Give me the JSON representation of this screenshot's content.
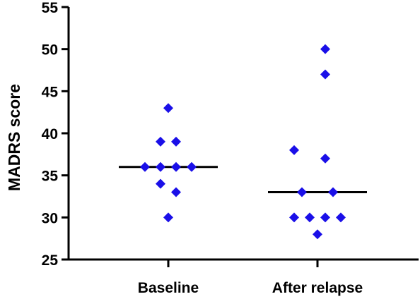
{
  "chart_data": {
    "type": "scatter",
    "title": "",
    "xlabel": "",
    "ylabel": "MADRS score",
    "ylim": [
      25,
      55
    ],
    "yticks": [
      "25",
      "30",
      "35",
      "40",
      "45",
      "50",
      "55"
    ],
    "categories": [
      "Baseline",
      "After relapse"
    ],
    "grid": false,
    "marker": "diamond",
    "colors": {
      "points": "#1a0fe8",
      "axes": "#000000",
      "median": "#000000"
    },
    "series": [
      {
        "category": "Baseline",
        "median": 36,
        "points": [
          {
            "offset": 0,
            "value": 43
          },
          {
            "offset": -0.5,
            "value": 39
          },
          {
            "offset": 0.5,
            "value": 39
          },
          {
            "offset": -1.5,
            "value": 36
          },
          {
            "offset": -0.5,
            "value": 36
          },
          {
            "offset": 0.5,
            "value": 36
          },
          {
            "offset": 1.5,
            "value": 36
          },
          {
            "offset": -0.5,
            "value": 34
          },
          {
            "offset": 0.5,
            "value": 33
          },
          {
            "offset": 0,
            "value": 30
          }
        ]
      },
      {
        "category": "After relapse",
        "median": 33,
        "points": [
          {
            "offset": 0.5,
            "value": 50
          },
          {
            "offset": 0.5,
            "value": 47
          },
          {
            "offset": -1.5,
            "value": 38
          },
          {
            "offset": 0.5,
            "value": 37
          },
          {
            "offset": -1.0,
            "value": 33
          },
          {
            "offset": 1.0,
            "value": 33
          },
          {
            "offset": -1.5,
            "value": 30
          },
          {
            "offset": -0.5,
            "value": 30
          },
          {
            "offset": 0.5,
            "value": 30
          },
          {
            "offset": 1.5,
            "value": 30
          },
          {
            "offset": 0,
            "value": 28
          }
        ]
      }
    ]
  }
}
